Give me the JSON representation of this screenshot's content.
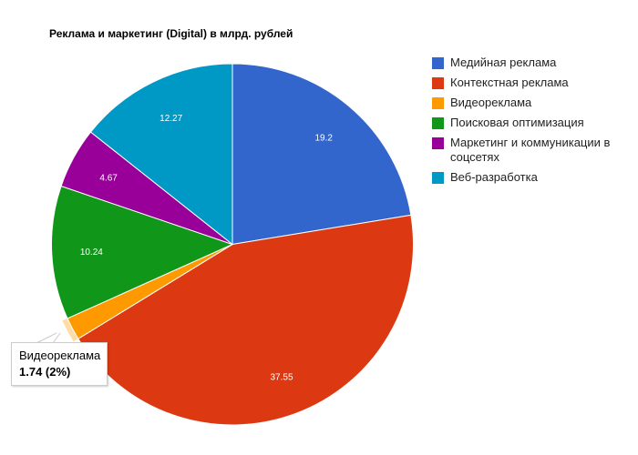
{
  "chart_data": {
    "type": "pie",
    "title": "Реклама и маркетинг (Digital) в млрд. рублей",
    "categories": [
      "Медийная реклама",
      "Контекстная реклама",
      "Видеореклама",
      "Поисковая оптимизация",
      "Маркетинг и коммуникации в соцсетях",
      "Веб-разработка"
    ],
    "values": [
      19.2,
      37.55,
      1.74,
      10.24,
      4.67,
      12.27
    ],
    "colors": [
      "#3366cc",
      "#dc3912",
      "#ff9900",
      "#109618",
      "#990099",
      "#0099c6"
    ],
    "slice_labels": [
      "19.2",
      "37.55",
      "",
      "10.24",
      "4.67",
      "12.27"
    ],
    "legend_position": "right",
    "highlighted_slice": "Видеореклама"
  },
  "title": "Реклама и маркетинг (Digital) в млрд. рублей",
  "legend": {
    "items": [
      {
        "label": "Медийная реклама",
        "color": "#3366cc"
      },
      {
        "label": "Контекстная реклама",
        "color": "#dc3912"
      },
      {
        "label": "Видеореклама",
        "color": "#ff9900"
      },
      {
        "label": "Поисковая оптимизация",
        "color": "#109618"
      },
      {
        "label": "Маркетинг и коммуникации в соцсетях",
        "color": "#990099"
      },
      {
        "label": "Веб-разработка",
        "color": "#0099c6"
      }
    ]
  },
  "tooltip": {
    "name": "Видеореклама",
    "value": "1.74 (2%)"
  }
}
